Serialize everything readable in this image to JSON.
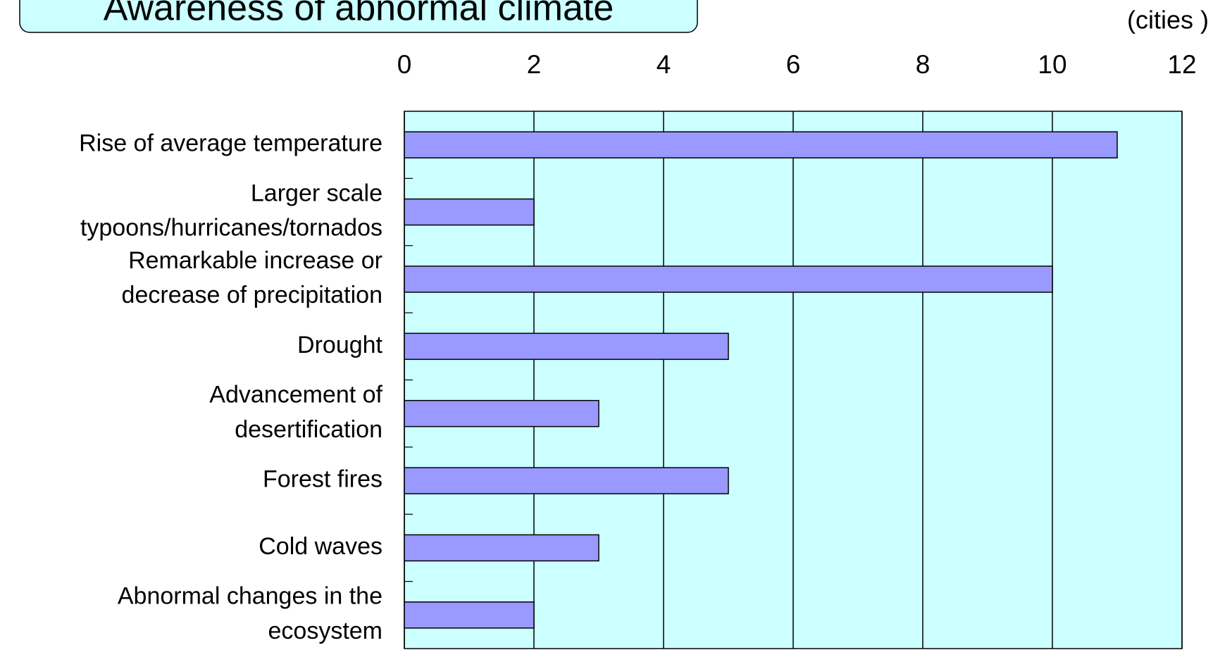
{
  "chart_data": {
    "type": "bar",
    "orientation": "horizontal",
    "title": "Awareness of abnormal climate",
    "unit_label": "(cities )",
    "categories": [
      "Rise of average temperature",
      "Larger scale\ntypoons/hurricanes/tornados",
      "Remarkable increase or\ndecrease of precipitation",
      "Drought",
      "Advancement of\ndesertification",
      "Forest fires",
      "Cold waves",
      "Abnormal changes in the\necosystem"
    ],
    "values": [
      11,
      2,
      10,
      5,
      3,
      5,
      3,
      2
    ],
    "color": "#9999ff",
    "xlim": [
      0,
      12
    ],
    "xticks": [
      0,
      2,
      4,
      6,
      8,
      10,
      12
    ],
    "grid": true
  }
}
